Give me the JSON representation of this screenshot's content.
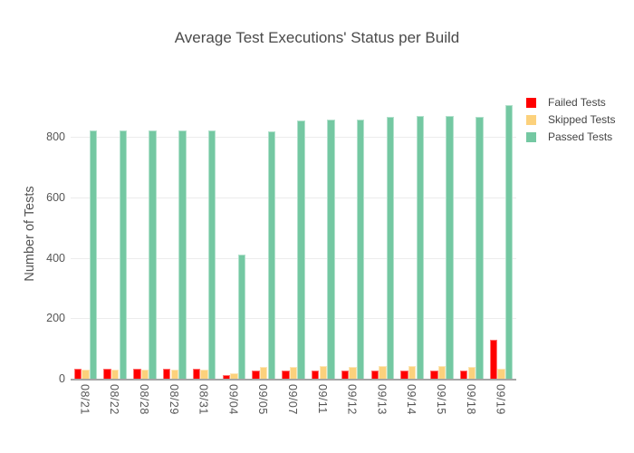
{
  "chart_data": {
    "type": "bar",
    "bar_mode": "group",
    "title": "Average Test Executions' Status per Build",
    "xlabel": "",
    "ylabel": "Number of Tests",
    "categories": [
      "08/21",
      "08/22",
      "08/28",
      "08/29",
      "08/31",
      "09/04",
      "09/05",
      "09/07",
      "09/11",
      "09/12",
      "09/13",
      "09/14",
      "09/15",
      "09/18",
      "09/19"
    ],
    "series": [
      {
        "name": "Failed Tests",
        "color": "#ff0000",
        "values": [
          32,
          34,
          32,
          34,
          34,
          13,
          27,
          26,
          28,
          28,
          28,
          27,
          27,
          28,
          130
        ]
      },
      {
        "name": "Skipped Tests",
        "color": "#fcd17c",
        "values": [
          30,
          29,
          30,
          30,
          30,
          19,
          40,
          38,
          41,
          40,
          42,
          42,
          41,
          39,
          34
        ]
      },
      {
        "name": "Passed Tests",
        "color": "#74c8a2",
        "values": [
          822,
          822,
          822,
          822,
          822,
          410,
          820,
          854,
          857,
          857,
          866,
          869,
          869,
          868,
          906
        ]
      }
    ],
    "ylim": [
      0,
      990
    ],
    "yticks": [
      0,
      200,
      400,
      600,
      800
    ],
    "grid": true,
    "legend_position": "right"
  },
  "colors": {
    "background": "#ffffff",
    "gridline": "#ececec",
    "axis_line": "#a5a5a5",
    "title_text": "#4a4a4a",
    "tick_text": "#555555",
    "legend_text": "#444444"
  }
}
